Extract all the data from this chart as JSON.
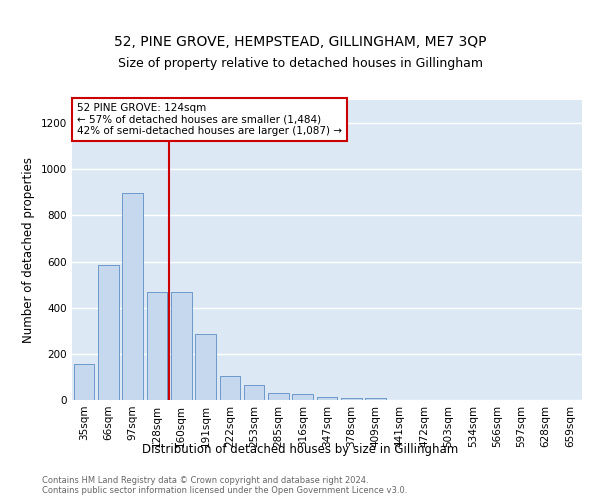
{
  "title": "52, PINE GROVE, HEMPSTEAD, GILLINGHAM, ME7 3QP",
  "subtitle": "Size of property relative to detached houses in Gillingham",
  "xlabel": "Distribution of detached houses by size in Gillingham",
  "ylabel": "Number of detached properties",
  "bar_labels": [
    "35sqm",
    "66sqm",
    "97sqm",
    "128sqm",
    "160sqm",
    "191sqm",
    "222sqm",
    "253sqm",
    "285sqm",
    "316sqm",
    "347sqm",
    "378sqm",
    "409sqm",
    "441sqm",
    "472sqm",
    "503sqm",
    "534sqm",
    "566sqm",
    "597sqm",
    "628sqm",
    "659sqm"
  ],
  "bar_values": [
    155,
    585,
    895,
    470,
    470,
    285,
    105,
    65,
    30,
    25,
    15,
    10,
    10,
    0,
    0,
    0,
    0,
    0,
    0,
    0,
    0
  ],
  "bar_color": "#c5d8ed",
  "bar_edge_color": "#5b8ec4",
  "vline_x": 3.5,
  "vline_color": "#cc0000",
  "annotation_text": "52 PINE GROVE: 124sqm\n← 57% of detached houses are smaller (1,484)\n42% of semi-detached houses are larger (1,087) →",
  "annotation_box_color": "#ffffff",
  "annotation_edge_color": "#cc0000",
  "ylim": [
    0,
    1300
  ],
  "yticks": [
    0,
    200,
    400,
    600,
    800,
    1000,
    1200
  ],
  "background_color": "#dce9f5",
  "plot_bg_color": "#dce9f5",
  "footer_text": "Contains HM Land Registry data © Crown copyright and database right 2024.\nContains public sector information licensed under the Open Government Licence v3.0.",
  "title_fontsize": 10,
  "subtitle_fontsize": 9,
  "axis_label_fontsize": 8.5,
  "tick_fontsize": 7.5,
  "annotation_fontsize": 7.5
}
